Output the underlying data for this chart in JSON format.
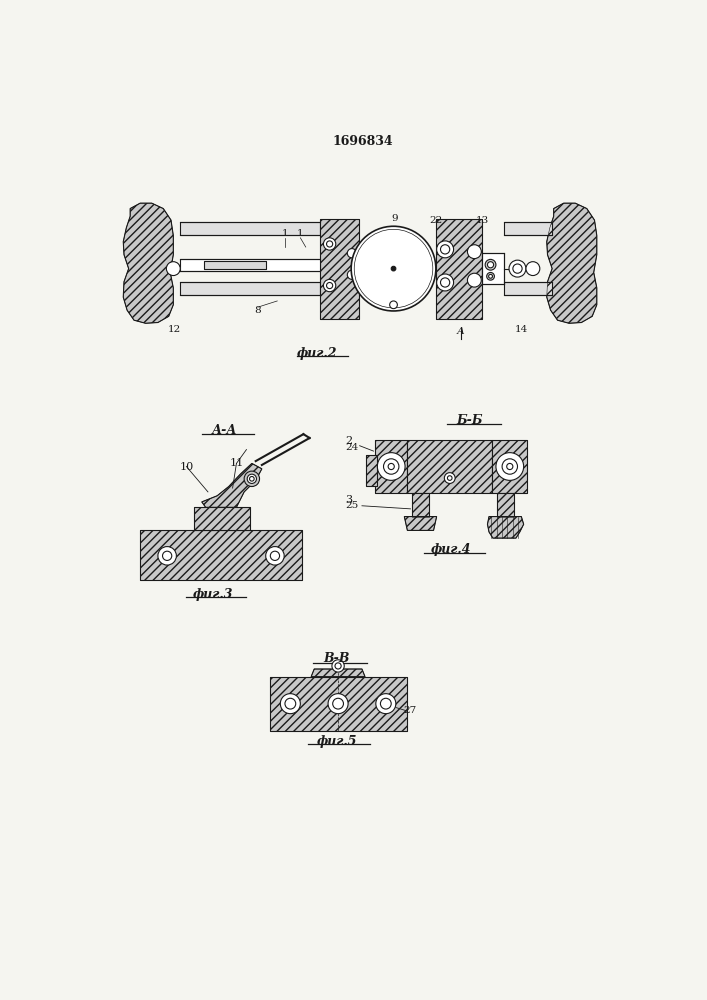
{
  "title": "1696834",
  "bg_color": "#f5f5f0",
  "lc": "#1a1a1a",
  "lw": 0.8,
  "hatch": "////",
  "fill_dark": "#b0b0b0",
  "fill_mid": "#c8c8c8",
  "fill_light": "#e0e0e0",
  "fig2_label": "фиг.2",
  "fig3_label": "фиг.3",
  "fig4_label": "фиг.4",
  "fig5_label": "фиг.5",
  "sec_AA": "А-А",
  "sec_BB": "Б-Б",
  "sec_VV": "В-В"
}
